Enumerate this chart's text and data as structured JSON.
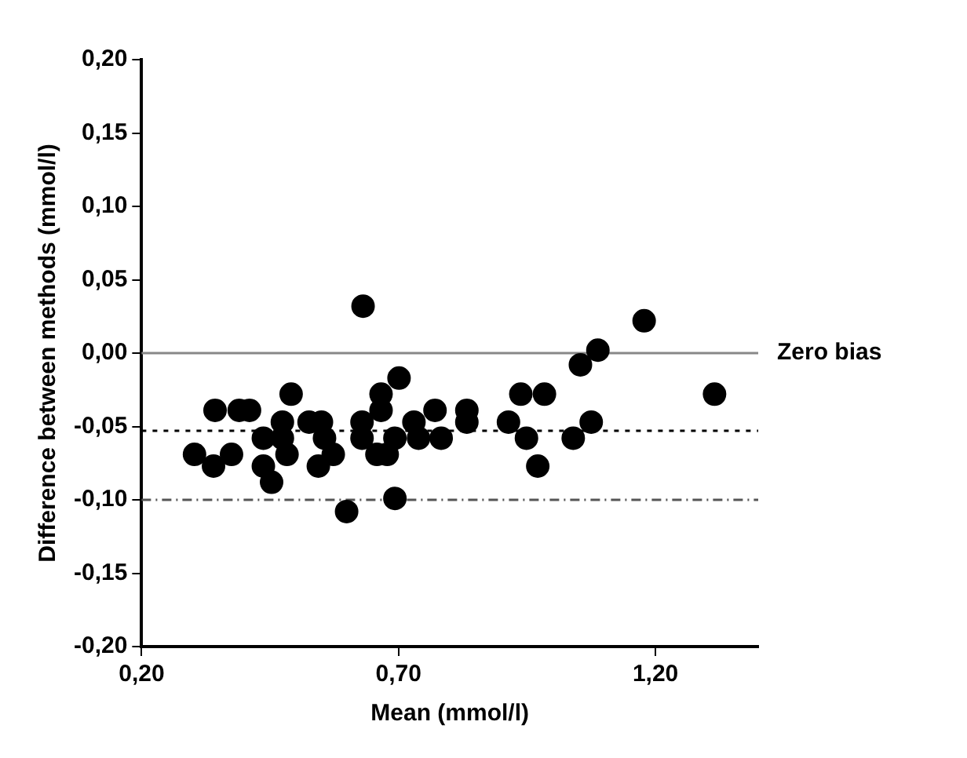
{
  "chart_data": {
    "type": "scatter",
    "xlabel": "Mean (mmol/l)",
    "ylabel": "Difference between methods (mmol/l)",
    "x": [
      0.631,
      0.303,
      0.34,
      0.343,
      0.375,
      0.39,
      0.41,
      0.437,
      0.437,
      0.453,
      0.474,
      0.474,
      0.483,
      0.491,
      0.526,
      0.55,
      0.556,
      0.544,
      0.573,
      0.599,
      0.629,
      0.629,
      0.658,
      0.666,
      0.666,
      0.678,
      0.701,
      0.693,
      0.693,
      0.713,
      0.73,
      0.739,
      0.771,
      0.783,
      0.833,
      0.833,
      0.914,
      0.938,
      0.984,
      0.949,
      0.971,
      1.04,
      1.075,
      1.054,
      1.088,
      1.178,
      1.315
    ],
    "series": [
      {
        "color": "#000000",
        "values": [
          0.032,
          -0.069,
          -0.077,
          -0.039,
          -0.069,
          -0.039,
          -0.039,
          -0.058,
          -0.077,
          -0.088,
          -0.047,
          -0.058,
          -0.069,
          -0.028,
          -0.047,
          -0.047,
          -0.058,
          -0.077,
          -0.069,
          -0.108,
          -0.047,
          -0.058,
          -0.069,
          -0.028,
          -0.039,
          -0.069,
          -0.017,
          -0.099,
          -0.058,
          null,
          -0.047,
          -0.058,
          -0.039,
          -0.058,
          -0.039,
          -0.047,
          -0.047,
          -0.028,
          -0.028,
          -0.058,
          -0.077,
          -0.058,
          -0.047,
          -0.008,
          0.002,
          0.022,
          -0.028
        ]
      }
    ],
    "marker": "circle",
    "grid": false,
    "legend": false,
    "xlim": [
      0.2,
      1.4
    ],
    "xticks": [
      {
        "value": 0.2,
        "label": "0,20"
      },
      {
        "value": 0.7,
        "label": "0,70"
      },
      {
        "value": 1.2,
        "label": "1,20"
      }
    ],
    "ylim": [
      -0.2,
      0.2
    ],
    "yticks": [
      {
        "value": -0.2,
        "label": "-0,20"
      },
      {
        "value": -0.15,
        "label": "-0,15"
      },
      {
        "value": -0.1,
        "label": "-0,10"
      },
      {
        "value": -0.05,
        "label": "-0,05"
      },
      {
        "value": 0,
        "label": "0,00"
      },
      {
        "value": 0.05,
        "label": "0,05"
      },
      {
        "value": 0.1,
        "label": "0,10"
      },
      {
        "value": 0.15,
        "label": "0,15"
      },
      {
        "value": 0.2,
        "label": "0,20"
      }
    ],
    "ref_lines": [
      {
        "axis": "y",
        "value": 0,
        "label": "Zero bias",
        "color": "#888888",
        "line_style": "solid"
      },
      {
        "axis": "y",
        "value": -0.053,
        "label": null,
        "color": "#000000",
        "line_style": "dotted"
      },
      {
        "axis": "y",
        "value": -0.1,
        "label": null,
        "color": "#555555",
        "line_style": "dashed"
      }
    ]
  }
}
